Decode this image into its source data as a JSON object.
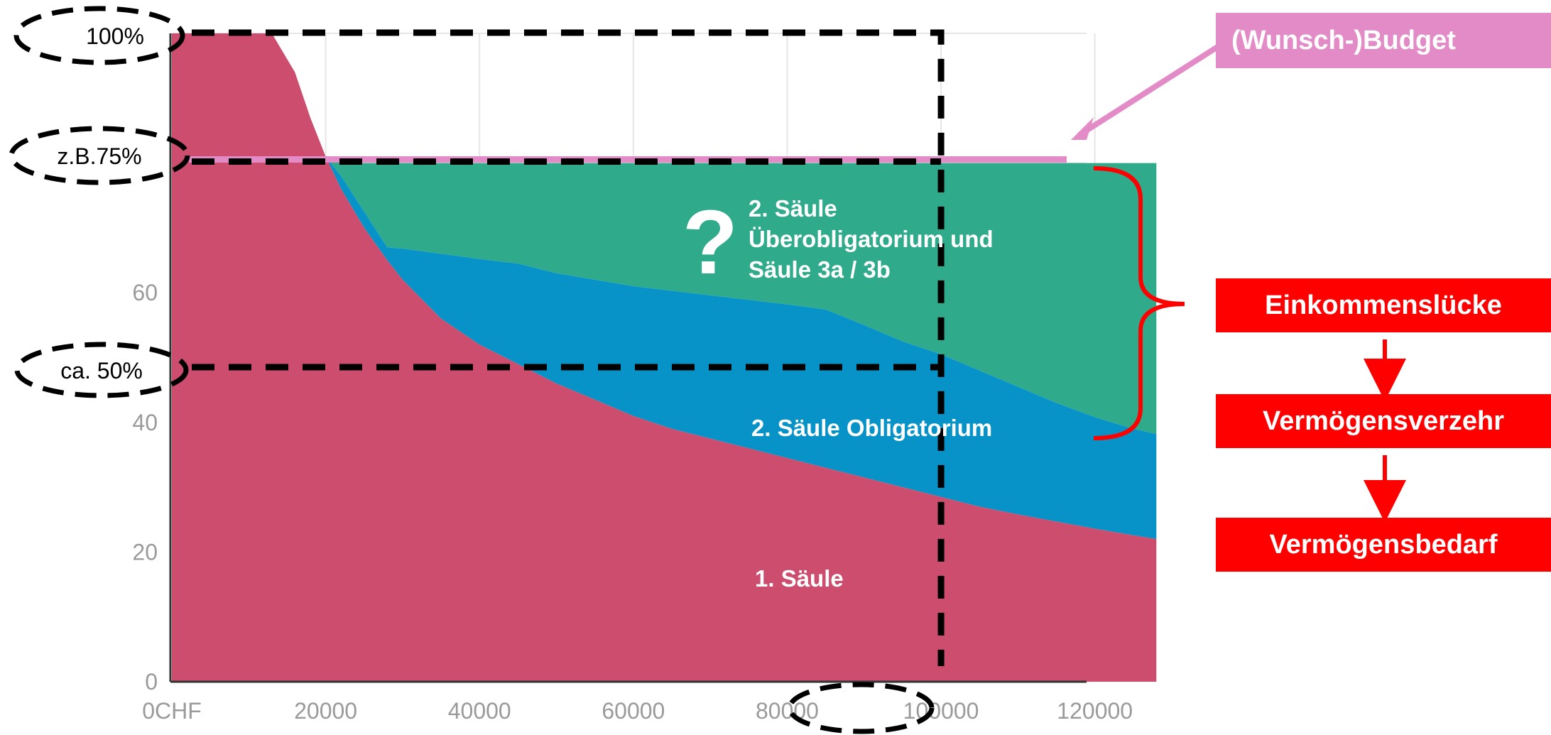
{
  "chart_data": {
    "type": "area",
    "x": [
      13000,
      16000,
      18000,
      20000,
      22000,
      25000,
      28000,
      30000,
      35000,
      40000,
      45000,
      50000,
      55000,
      60000,
      65000,
      70000,
      75000,
      80000,
      85000,
      90000,
      95000,
      100000,
      105000,
      110000,
      115000,
      120000,
      125000,
      128000
    ],
    "series": [
      {
        "name": "1. Säule",
        "values": [
          100,
          94,
          87,
          81,
          76,
          70,
          65,
          62,
          56,
          52,
          49,
          46,
          43.5,
          41,
          39,
          37.5,
          36,
          34.5,
          33,
          31.5,
          30,
          28.5,
          27,
          25.8,
          24.7,
          23.6,
          22.6,
          22
        ]
      },
      {
        "name": "2. Säule Obligatorium",
        "values": [
          100,
          94,
          87,
          81,
          78,
          72.5,
          67,
          66.8,
          66,
          65.2,
          64.5,
          63,
          62,
          61,
          60.3,
          59.6,
          58.9,
          58.2,
          57.4,
          55,
          52.5,
          50.5,
          48,
          45.5,
          43,
          40.8,
          39,
          38.2
        ]
      },
      {
        "name": "2. Säule Überobligatorium und Säule 3a / 3b",
        "values": [
          100,
          94,
          87,
          81,
          80,
          80,
          80,
          80,
          80,
          80,
          80,
          80,
          80,
          80,
          80,
          80,
          80,
          80,
          80,
          80,
          80,
          80,
          80,
          80,
          80,
          80,
          80,
          80
        ]
      }
    ],
    "colors": {
      "first": "#cc4d6e",
      "oblig": "#0893c8",
      "ueberoblig": "#2fab8c",
      "budget": "#e38bc7"
    },
    "xlim": [
      0,
      130000
    ],
    "ylim": [
      0,
      100
    ],
    "xticks": [
      "0CHF",
      "20000",
      "40000",
      "60000",
      "80000",
      "100000",
      "120000"
    ],
    "yticks": [
      "0",
      "20",
      "40",
      "60"
    ],
    "grid": true,
    "budget_value": 81,
    "markers": {
      "y_100": "100%",
      "y_75": "z.B.75%",
      "y_50": "ca. 50%",
      "x_marker": 100000
    },
    "labels": {
      "first": "1. Säule",
      "oblig": "2. Säule Obligatorium",
      "ueber_line1": "2. Säule",
      "ueber_line2": "Überobligatorium und",
      "ueber_line3": "Säule 3a / 3b",
      "question": "?"
    }
  },
  "side": {
    "budget": "(Wunsch-)Budget",
    "gap": "Einkommenslücke",
    "consumption": "Vermögensverzehr",
    "need": "Vermögensbedarf"
  }
}
